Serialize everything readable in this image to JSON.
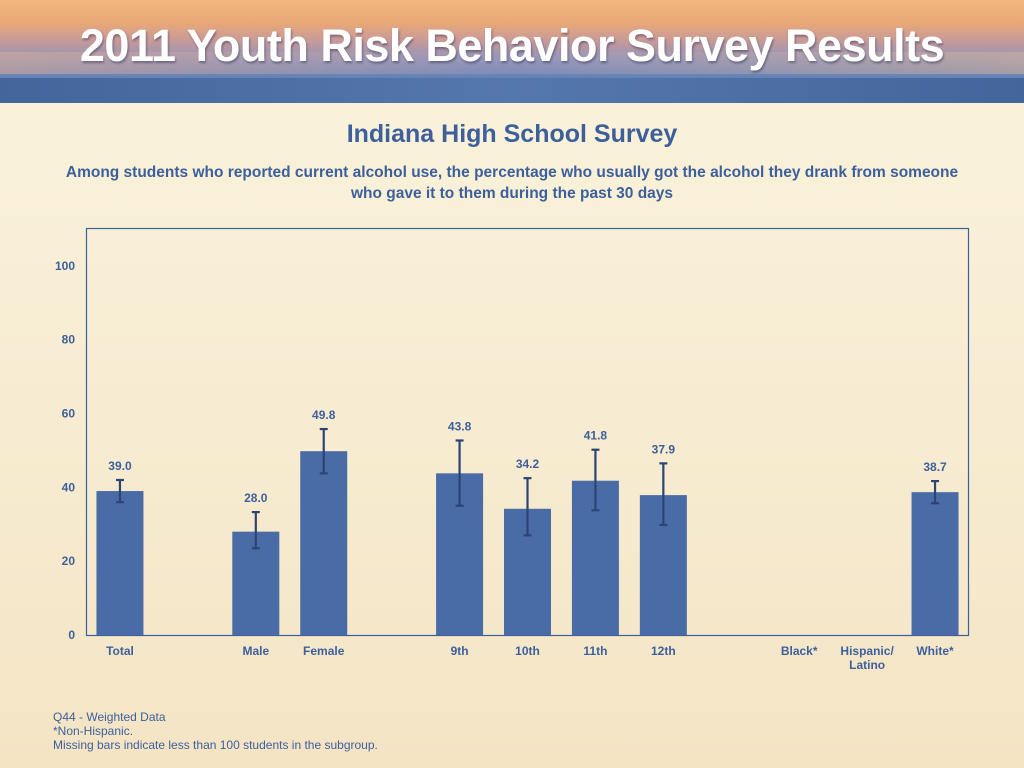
{
  "header": {
    "banner_title": "2011 Youth Risk Behavior Survey Results"
  },
  "chart_data": {
    "type": "bar",
    "title": "Indiana High School Survey",
    "subtitle": "Among students who reported current alcohol use, the percentage who usually got the alcohol they drank from someone who gave it to them during the past 30 days",
    "categories": [
      "Total",
      "",
      "Male",
      "Female",
      "",
      "9th",
      "10th",
      "11th",
      "12th",
      "",
      "Black*",
      "Hispanic/ Latino",
      "White*"
    ],
    "values": [
      39.0,
      null,
      28.0,
      49.8,
      null,
      43.8,
      34.2,
      41.8,
      37.9,
      null,
      null,
      null,
      38.7
    ],
    "value_labels": [
      "39.0",
      "",
      "28.0",
      "49.8",
      "",
      "43.8",
      "34.2",
      "41.8",
      "37.9",
      "",
      "",
      "",
      "38.7"
    ],
    "error_low": [
      36.0,
      null,
      23.5,
      43.8,
      null,
      35.0,
      27.0,
      33.8,
      29.8,
      null,
      null,
      null,
      35.7
    ],
    "error_high": [
      42.0,
      null,
      33.3,
      55.8,
      null,
      52.7,
      42.5,
      50.2,
      46.5,
      null,
      null,
      null,
      41.7
    ],
    "ylim": [
      0,
      110
    ],
    "y_ticks": [
      "0",
      "20",
      "40",
      "60",
      "80",
      "100"
    ],
    "xlabel": "",
    "ylabel": "",
    "bar_color": "#4a6ca6",
    "error_bar_color": "#2c4474",
    "grid": false
  },
  "footnotes": [
    "Q44 - Weighted Data",
    "*Non-Hispanic.",
    "Missing bars indicate less than 100 students in the subgroup."
  ],
  "colors": {
    "text_primary": "#3d5f9b",
    "axis": "#3d5f9b"
  }
}
